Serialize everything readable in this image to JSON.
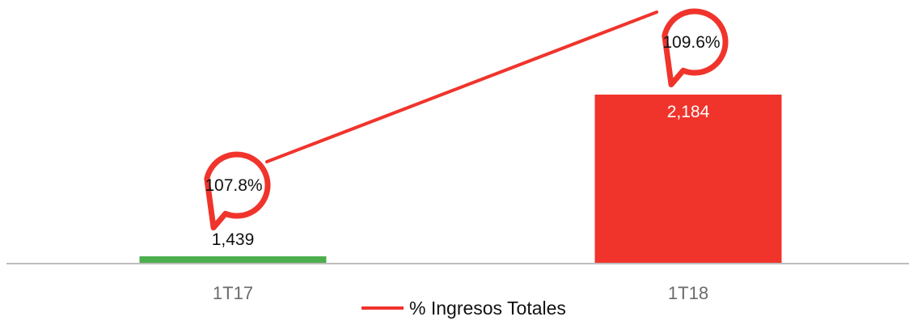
{
  "chart_data": {
    "type": "bar",
    "categories": [
      "1T17",
      "1T18"
    ],
    "bar_values": [
      1439,
      2184
    ],
    "bar_value_labels": [
      "1,439",
      "2,184"
    ],
    "bar_colors": [
      "#4cae4c",
      "#f0342c"
    ],
    "line_series": {
      "name": "% Ingresos Totales",
      "values": [
        107.8,
        109.6
      ],
      "labels": [
        "107.8%",
        "109.6%"
      ],
      "color": "#f0342c"
    },
    "legend_position": "bottom",
    "grid": false
  }
}
